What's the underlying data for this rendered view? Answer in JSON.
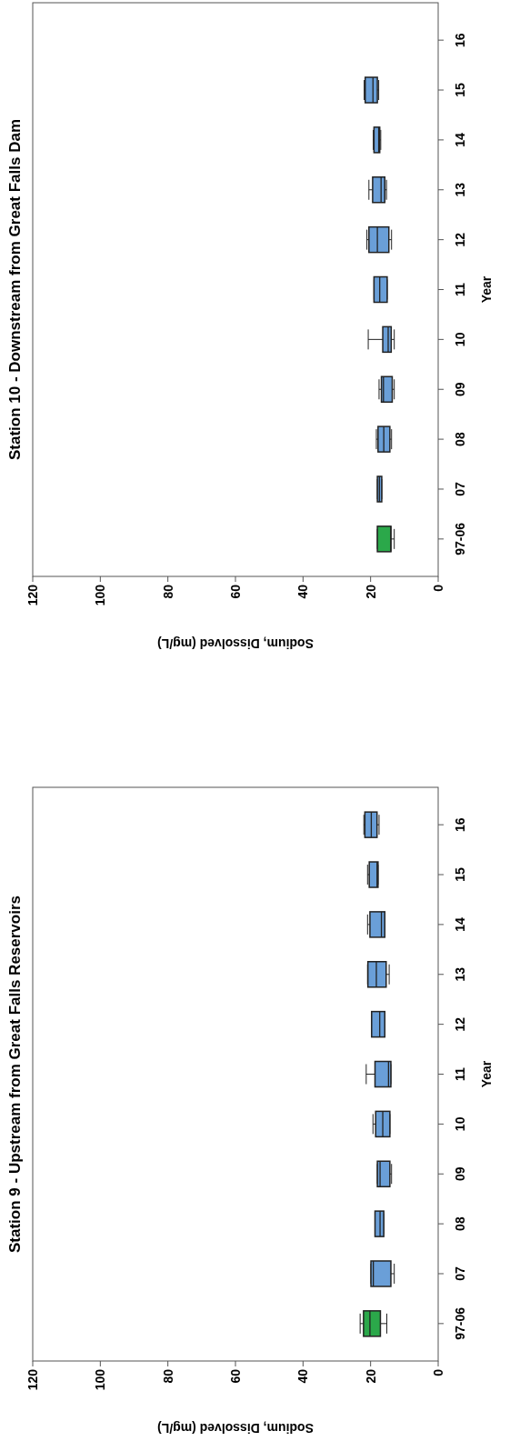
{
  "chart_data": [
    {
      "type": "box",
      "orientation": "horizontal",
      "title": "Station 10 - Downstream from Great Falls Dam",
      "xlabel": "Sodium, Dissolved (mg/L)",
      "ylabel": "Year",
      "categories": [
        "16",
        "15",
        "14",
        "13",
        "12",
        "11",
        "10",
        "09",
        "08",
        "07",
        "97-06"
      ],
      "colors": [
        null,
        "#6a9fd8",
        "#6a9fd8",
        "#6a9fd8",
        "#6a9fd8",
        "#6a9fd8",
        "#6a9fd8",
        "#6a9fd8",
        "#6a9fd8",
        "#6a9fd8",
        "#2ba84a"
      ],
      "boxes": [
        null,
        {
          "low": 17.6,
          "q1": 18.0,
          "median": 19.3,
          "q3": 21.6,
          "high": 21.9
        },
        {
          "low": 17.0,
          "q1": 17.3,
          "median": 17.6,
          "q3": 19.0,
          "high": 19.2
        },
        {
          "low": 15.3,
          "q1": 15.8,
          "median": 16.9,
          "q3": 19.4,
          "high": 20.5
        },
        {
          "low": 13.8,
          "q1": 14.6,
          "median": 18.0,
          "q3": 20.5,
          "high": 21.1
        },
        {
          "low": 15.1,
          "q1": 15.1,
          "median": 17.3,
          "q3": 19.0,
          "high": 19.0
        },
        {
          "low": 13.0,
          "q1": 13.9,
          "median": 14.8,
          "q3": 16.4,
          "high": 20.7
        },
        {
          "low": 13.0,
          "q1": 13.6,
          "median": 16.2,
          "q3": 16.8,
          "high": 17.5
        },
        {
          "low": 13.8,
          "q1": 14.3,
          "median": 16.1,
          "q3": 17.8,
          "high": 18.3
        },
        {
          "low": 16.7,
          "q1": 16.7,
          "median": 17.4,
          "q3": 18.0,
          "high": 18.0
        },
        {
          "low": 13.0,
          "q1": 14.0,
          "median": 14.0,
          "q3": 18.0,
          "high": 18.0
        }
      ],
      "xlim": [
        120,
        0
      ],
      "xticks": [
        120,
        100,
        80,
        60,
        40,
        20,
        0
      ]
    },
    {
      "type": "box",
      "orientation": "horizontal",
      "title": "Station 9 - Upstream from Great Falls Reservoirs",
      "xlabel": "Sodium, Dissolved (mg/L)",
      "ylabel": "Year",
      "categories": [
        "16",
        "15",
        "14",
        "13",
        "12",
        "11",
        "10",
        "09",
        "08",
        "07",
        "97-06"
      ],
      "colors": [
        "#6a9fd8",
        "#6a9fd8",
        "#6a9fd8",
        "#6a9fd8",
        "#6a9fd8",
        "#6a9fd8",
        "#6a9fd8",
        "#6a9fd8",
        "#6a9fd8",
        "#6a9fd8",
        "#2ba84a"
      ],
      "boxes": [
        {
          "low": 17.5,
          "q1": 18.1,
          "median": 19.8,
          "q3": 21.7,
          "high": 22.0
        },
        {
          "low": 17.8,
          "q1": 17.8,
          "median": 18.1,
          "q3": 20.4,
          "high": 20.9
        },
        {
          "low": 15.8,
          "q1": 15.8,
          "median": 16.8,
          "q3": 20.2,
          "high": 20.9
        },
        {
          "low": 14.5,
          "q1": 15.4,
          "median": 18.3,
          "q3": 20.8,
          "high": 20.9
        },
        {
          "low": 15.8,
          "q1": 15.8,
          "median": 17.3,
          "q3": 19.7,
          "high": 19.7
        },
        {
          "low": 14.0,
          "q1": 14.0,
          "median": 14.7,
          "q3": 18.7,
          "high": 21.3
        },
        {
          "low": 14.3,
          "q1": 14.3,
          "median": 16.4,
          "q3": 18.5,
          "high": 19.3
        },
        {
          "low": 13.8,
          "q1": 14.3,
          "median": 17.2,
          "q3": 18.0,
          "high": 18.0
        },
        {
          "low": 16.1,
          "q1": 16.1,
          "median": 17.2,
          "q3": 18.7,
          "high": 18.7
        },
        {
          "low": 13.0,
          "q1": 14.0,
          "median": 19.2,
          "q3": 19.9,
          "high": 19.9
        },
        {
          "low": 15.2,
          "q1": 17.1,
          "median": 20.2,
          "q3": 22.1,
          "high": 23.1
        }
      ],
      "xlim": [
        120,
        0
      ],
      "xticks": [
        120,
        100,
        80,
        60,
        40,
        20,
        0
      ]
    }
  ]
}
